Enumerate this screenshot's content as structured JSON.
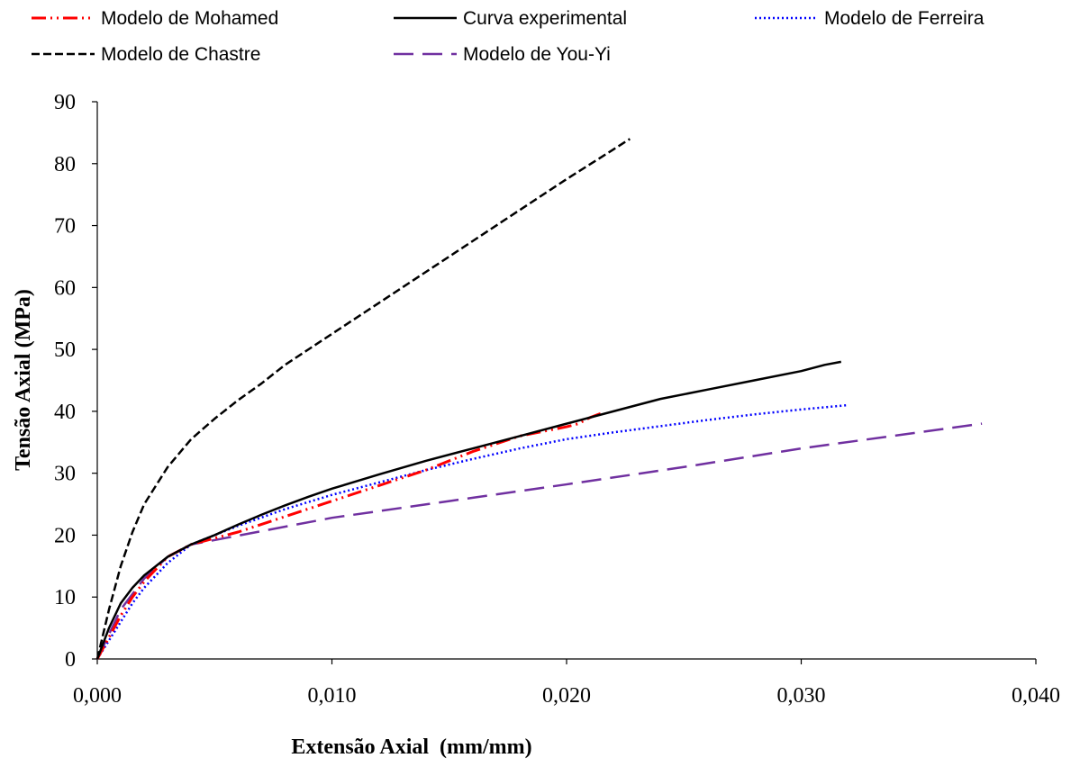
{
  "chart_data": {
    "type": "line",
    "title": "",
    "xlabel": "Extensão Axial  (mm/mm)",
    "ylabel": "Tensão Axial (MPa)",
    "xlim": [
      0,
      0.04
    ],
    "ylim": [
      0,
      90
    ],
    "grid": false,
    "legend_placement": "top",
    "x_tick_values": [
      0,
      0.01,
      0.02,
      0.03,
      0.04
    ],
    "x_tick_labels": [
      "0,000",
      "0,010",
      "0,020",
      "0,030",
      "0,040"
    ],
    "y_tick_values": [
      0,
      10,
      20,
      30,
      40,
      50,
      60,
      70,
      80,
      90
    ],
    "y_tick_labels": [
      "0",
      "10",
      "20",
      "30",
      "40",
      "50",
      "60",
      "70",
      "80",
      "90"
    ],
    "series": [
      {
        "name": "Modelo de Mohamed",
        "color": "#ff0000",
        "style": "dash-dot-dot",
        "points": [
          [
            0,
            0
          ],
          [
            0.0005,
            3.5
          ],
          [
            0.001,
            7
          ],
          [
            0.0015,
            10
          ],
          [
            0.002,
            12.5
          ],
          [
            0.003,
            16.5
          ],
          [
            0.004,
            18.5
          ],
          [
            0.005,
            19.5
          ],
          [
            0.006,
            20.5
          ],
          [
            0.008,
            23
          ],
          [
            0.01,
            25.5
          ],
          [
            0.012,
            28
          ],
          [
            0.014,
            30.5
          ],
          [
            0.016,
            33.5
          ],
          [
            0.018,
            36
          ],
          [
            0.02,
            37.5
          ],
          [
            0.0205,
            38
          ],
          [
            0.021,
            39
          ],
          [
            0.0215,
            39.7
          ]
        ]
      },
      {
        "name": "Curva experimental",
        "color": "#000000",
        "style": "solid",
        "points": [
          [
            0,
            0
          ],
          [
            0.0005,
            5
          ],
          [
            0.001,
            9
          ],
          [
            0.0015,
            11.5
          ],
          [
            0.002,
            13.5
          ],
          [
            0.003,
            16.5
          ],
          [
            0.004,
            18.5
          ],
          [
            0.005,
            20
          ],
          [
            0.006,
            21.7
          ],
          [
            0.007,
            23.3
          ],
          [
            0.008,
            24.8
          ],
          [
            0.009,
            26.2
          ],
          [
            0.01,
            27.5
          ],
          [
            0.012,
            29.8
          ],
          [
            0.014,
            32
          ],
          [
            0.016,
            34
          ],
          [
            0.018,
            36
          ],
          [
            0.02,
            38
          ],
          [
            0.022,
            40
          ],
          [
            0.024,
            42
          ],
          [
            0.026,
            43.5
          ],
          [
            0.028,
            45
          ],
          [
            0.03,
            46.5
          ],
          [
            0.031,
            47.5
          ],
          [
            0.0317,
            48
          ]
        ]
      },
      {
        "name": "Modelo de Ferreira",
        "color": "#0000ff",
        "style": "dotted",
        "points": [
          [
            0,
            0
          ],
          [
            0.0005,
            3
          ],
          [
            0.001,
            6
          ],
          [
            0.0015,
            9
          ],
          [
            0.002,
            11.5
          ],
          [
            0.003,
            15.5
          ],
          [
            0.004,
            18.5
          ],
          [
            0.005,
            20
          ],
          [
            0.006,
            21.5
          ],
          [
            0.008,
            24.2
          ],
          [
            0.01,
            26.5
          ],
          [
            0.012,
            28.5
          ],
          [
            0.014,
            30.5
          ],
          [
            0.016,
            32.3
          ],
          [
            0.018,
            34
          ],
          [
            0.02,
            35.5
          ],
          [
            0.022,
            36.6
          ],
          [
            0.024,
            37.6
          ],
          [
            0.026,
            38.6
          ],
          [
            0.028,
            39.5
          ],
          [
            0.03,
            40.3
          ],
          [
            0.032,
            41
          ]
        ]
      },
      {
        "name": "Modelo de Chastre",
        "color": "#000000",
        "style": "dashed",
        "points": [
          [
            0,
            0
          ],
          [
            0.0005,
            8
          ],
          [
            0.001,
            15
          ],
          [
            0.0015,
            20.5
          ],
          [
            0.002,
            25
          ],
          [
            0.003,
            31
          ],
          [
            0.004,
            35.5
          ],
          [
            0.005,
            38.8
          ],
          [
            0.006,
            41.8
          ],
          [
            0.007,
            44.5
          ],
          [
            0.008,
            47.5
          ],
          [
            0.009,
            50
          ],
          [
            0.01,
            52.5
          ],
          [
            0.012,
            57.5
          ],
          [
            0.014,
            62.5
          ],
          [
            0.016,
            67.5
          ],
          [
            0.018,
            72.5
          ],
          [
            0.02,
            77.5
          ],
          [
            0.022,
            82.3
          ],
          [
            0.0227,
            84
          ]
        ]
      },
      {
        "name": "Modelo de You-Yi",
        "color": "#7030a0",
        "style": "long-dash",
        "points": [
          [
            0,
            0
          ],
          [
            0.001,
            8
          ],
          [
            0.002,
            13
          ],
          [
            0.003,
            16.5
          ],
          [
            0.004,
            18.5
          ],
          [
            0.005,
            19.2
          ],
          [
            0.01,
            22.8
          ],
          [
            0.015,
            25.5
          ],
          [
            0.02,
            28.2
          ],
          [
            0.025,
            31
          ],
          [
            0.03,
            34
          ],
          [
            0.0377,
            38
          ]
        ]
      }
    ]
  }
}
